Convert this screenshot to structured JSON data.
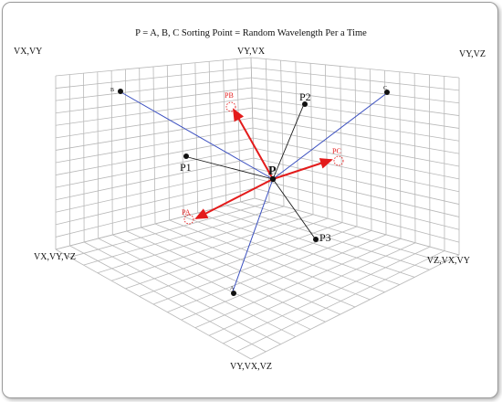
{
  "title": "P = A, B, C Sorting Point  =  Random Wavelength Per a Time",
  "corner_labels": {
    "top_left": "VX,VY",
    "top_center": "VY,VX",
    "top_right": "VY,VZ",
    "mid_left": "VX,VY,VZ",
    "mid_right": "VZ,VX,VY",
    "bottom": "VY,VX,VZ"
  },
  "points": {
    "center": "P",
    "p1": "P1",
    "p2": "P2",
    "p3": "P3",
    "a": "A",
    "b": "B",
    "c": "C"
  },
  "arrow_labels": {
    "pa": "PA",
    "pb": "PB",
    "pc": "PC"
  },
  "colors": {
    "grid": "#b8b8b8",
    "blue_lines": "#3a4fc0",
    "red_arrows": "#e31b1b",
    "black_lines": "#1a1a1a"
  }
}
